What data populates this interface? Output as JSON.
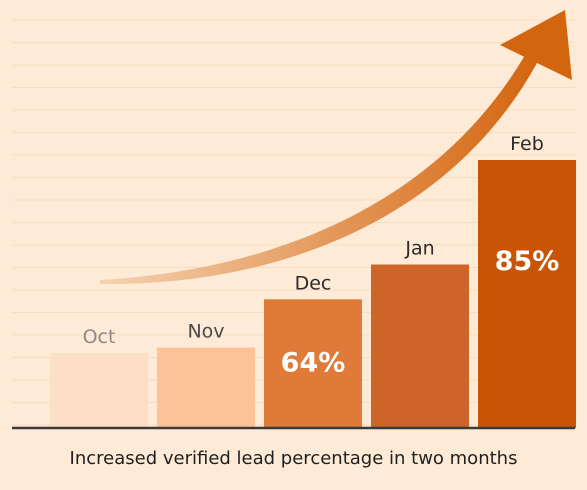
{
  "caption": "Increased verified lead percentage in two months",
  "colors": {
    "background": "#fdebd7",
    "gridline": "#f6dcc2",
    "baseline": "#3a3a3a",
    "arrow_start": "#f5d2b0",
    "arrow_end": "#d4650f",
    "month_label": "#2b2b2b",
    "faded_label": "#8f8a86",
    "value_label": "#ffffff"
  },
  "chart_data": {
    "type": "bar",
    "categories": [
      "Oct",
      "Nov",
      "Dec",
      "Jan",
      "Feb"
    ],
    "values": [
      28,
      30,
      48,
      61,
      100
    ],
    "value_scale": "relative bar height (Feb = 100), read from bar lengths; y-axis has no printed ticks",
    "data_labels": [
      "",
      "",
      "64%",
      "",
      "85%"
    ],
    "bar_colors": [
      "#fddfc5",
      "#fcc298",
      "#e07a38",
      "#cd6428",
      "#c95504"
    ],
    "label_colors": [
      "#8f8a86",
      "#4a4a4a",
      "#2b2b2b",
      "#2b2b2b",
      "#2b2b2b"
    ],
    "ylim": [
      0,
      100
    ],
    "grid": true,
    "annotation": "upward trend arrow",
    "xlabel": "",
    "ylabel": ""
  }
}
